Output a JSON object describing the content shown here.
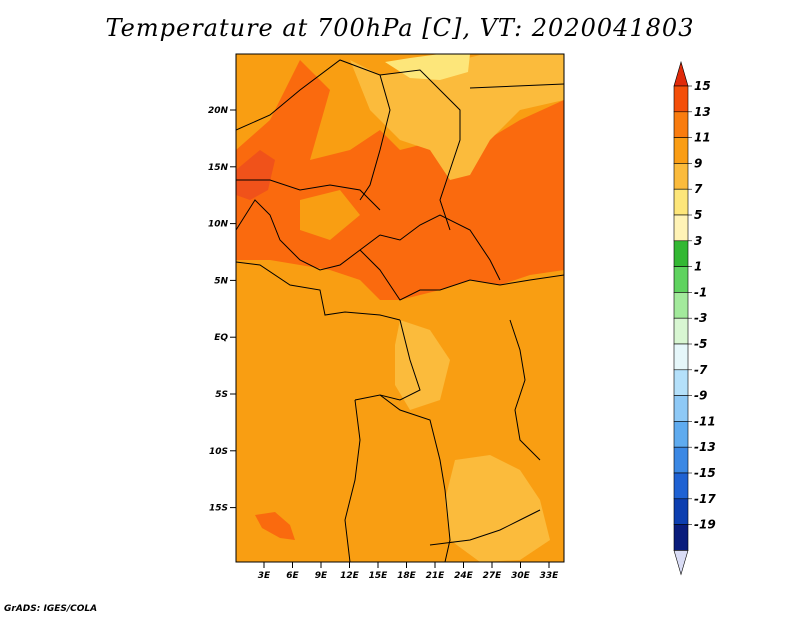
{
  "title": "Temperature at 700hPa [C], VT: 2020041803",
  "footer": "GrADS: IGES/COLA",
  "map": {
    "lat_ticks": [
      "20N",
      "15N",
      "10N",
      "5N",
      "EQ",
      "5S",
      "10S",
      "15S"
    ],
    "lon_ticks": [
      "3E",
      "6E",
      "9E",
      "12E",
      "15E",
      "18E",
      "21E",
      "24E",
      "27E",
      "30E",
      "33E"
    ]
  },
  "colorbar": {
    "labels": [
      "15",
      "13",
      "11",
      "9",
      "7",
      "5",
      "3",
      "1",
      "-1",
      "-3",
      "-5",
      "-7",
      "-9",
      "-11",
      "-13",
      "-15",
      "-17",
      "-19"
    ],
    "colors": [
      "#e02a0a",
      "#f44f0a",
      "#f97c0f",
      "#fa9d14",
      "#fbbb3c",
      "#fde67a",
      "#fff3b6",
      "#33b833",
      "#5fd35f",
      "#a3ea9c",
      "#d8f6d2",
      "#e6f7fa",
      "#b4e0fa",
      "#8ec9f6",
      "#5fabef",
      "#3b88e4",
      "#1f62d3",
      "#0d3fb0",
      "#0a1d7c",
      "#d9dcf5"
    ]
  },
  "palette": {
    "t13": "#f0521a",
    "t11": "#fa6a0e",
    "t9": "#f99e12",
    "t7": "#fbbb3c",
    "t5": "#fde67a"
  }
}
